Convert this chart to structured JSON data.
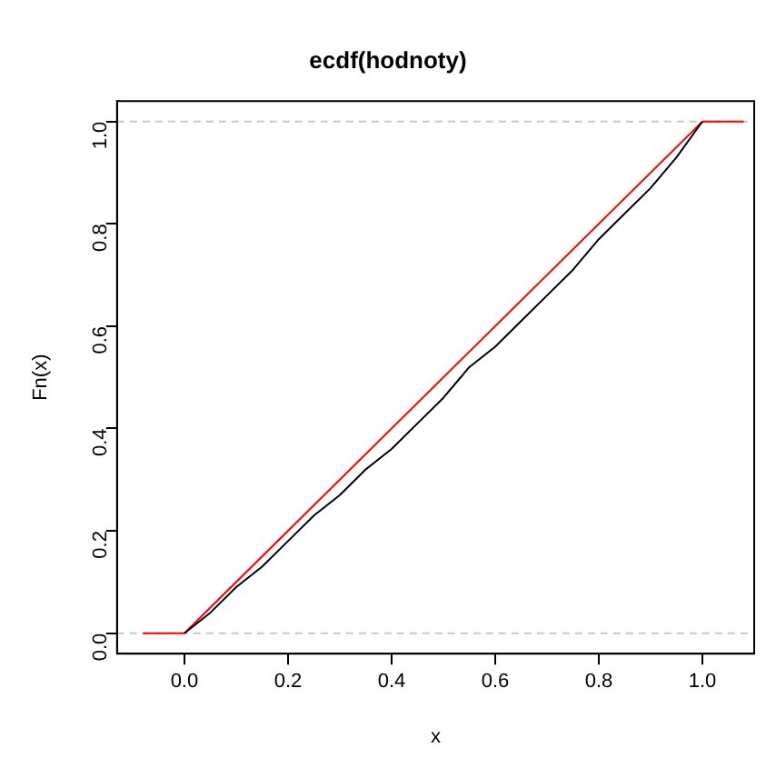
{
  "chart_data": {
    "type": "line",
    "title": "ecdf(hodnoty)",
    "xlabel": "x",
    "ylabel": "Fn(x)",
    "xlim": [
      -0.13,
      1.1
    ],
    "ylim": [
      -0.04,
      1.04
    ],
    "xticks": [
      {
        "value": 0,
        "label": "0.0"
      },
      0.2,
      0.4,
      0.6,
      0.8,
      {
        "value": 1,
        "label": "1.0"
      }
    ],
    "yticks": [
      {
        "value": 0,
        "label": "0.0"
      },
      0.2,
      0.4,
      0.6,
      0.8,
      {
        "value": 1,
        "label": "1.0"
      }
    ],
    "grid": false,
    "legend": false,
    "marker": "none",
    "line_style": "solid",
    "ref_lines": [
      {
        "axis": "y",
        "value": 0,
        "color": "#c8c8c8",
        "line_style": "dashed"
      },
      {
        "axis": "y",
        "value": 1,
        "color": "#c8c8c8",
        "line_style": "dashed"
      }
    ],
    "series": [
      {
        "color": "#000000",
        "x": [
          0,
          0.05,
          0.1,
          0.15,
          0.2,
          0.25,
          0.3,
          0.35,
          0.4,
          0.45,
          0.5,
          0.55,
          0.6,
          0.65,
          0.7,
          0.75,
          0.8,
          0.85,
          0.9,
          0.95,
          1.0
        ],
        "values": [
          0,
          0.04,
          0.09,
          0.13,
          0.18,
          0.23,
          0.27,
          0.32,
          0.36,
          0.41,
          0.46,
          0.52,
          0.56,
          0.61,
          0.66,
          0.71,
          0.77,
          0.82,
          0.87,
          0.93,
          1.0
        ]
      },
      {
        "color": "#ff0000",
        "x": [
          -0.08,
          0,
          1,
          1.08
        ],
        "values": [
          0,
          0,
          1,
          1
        ]
      }
    ]
  }
}
